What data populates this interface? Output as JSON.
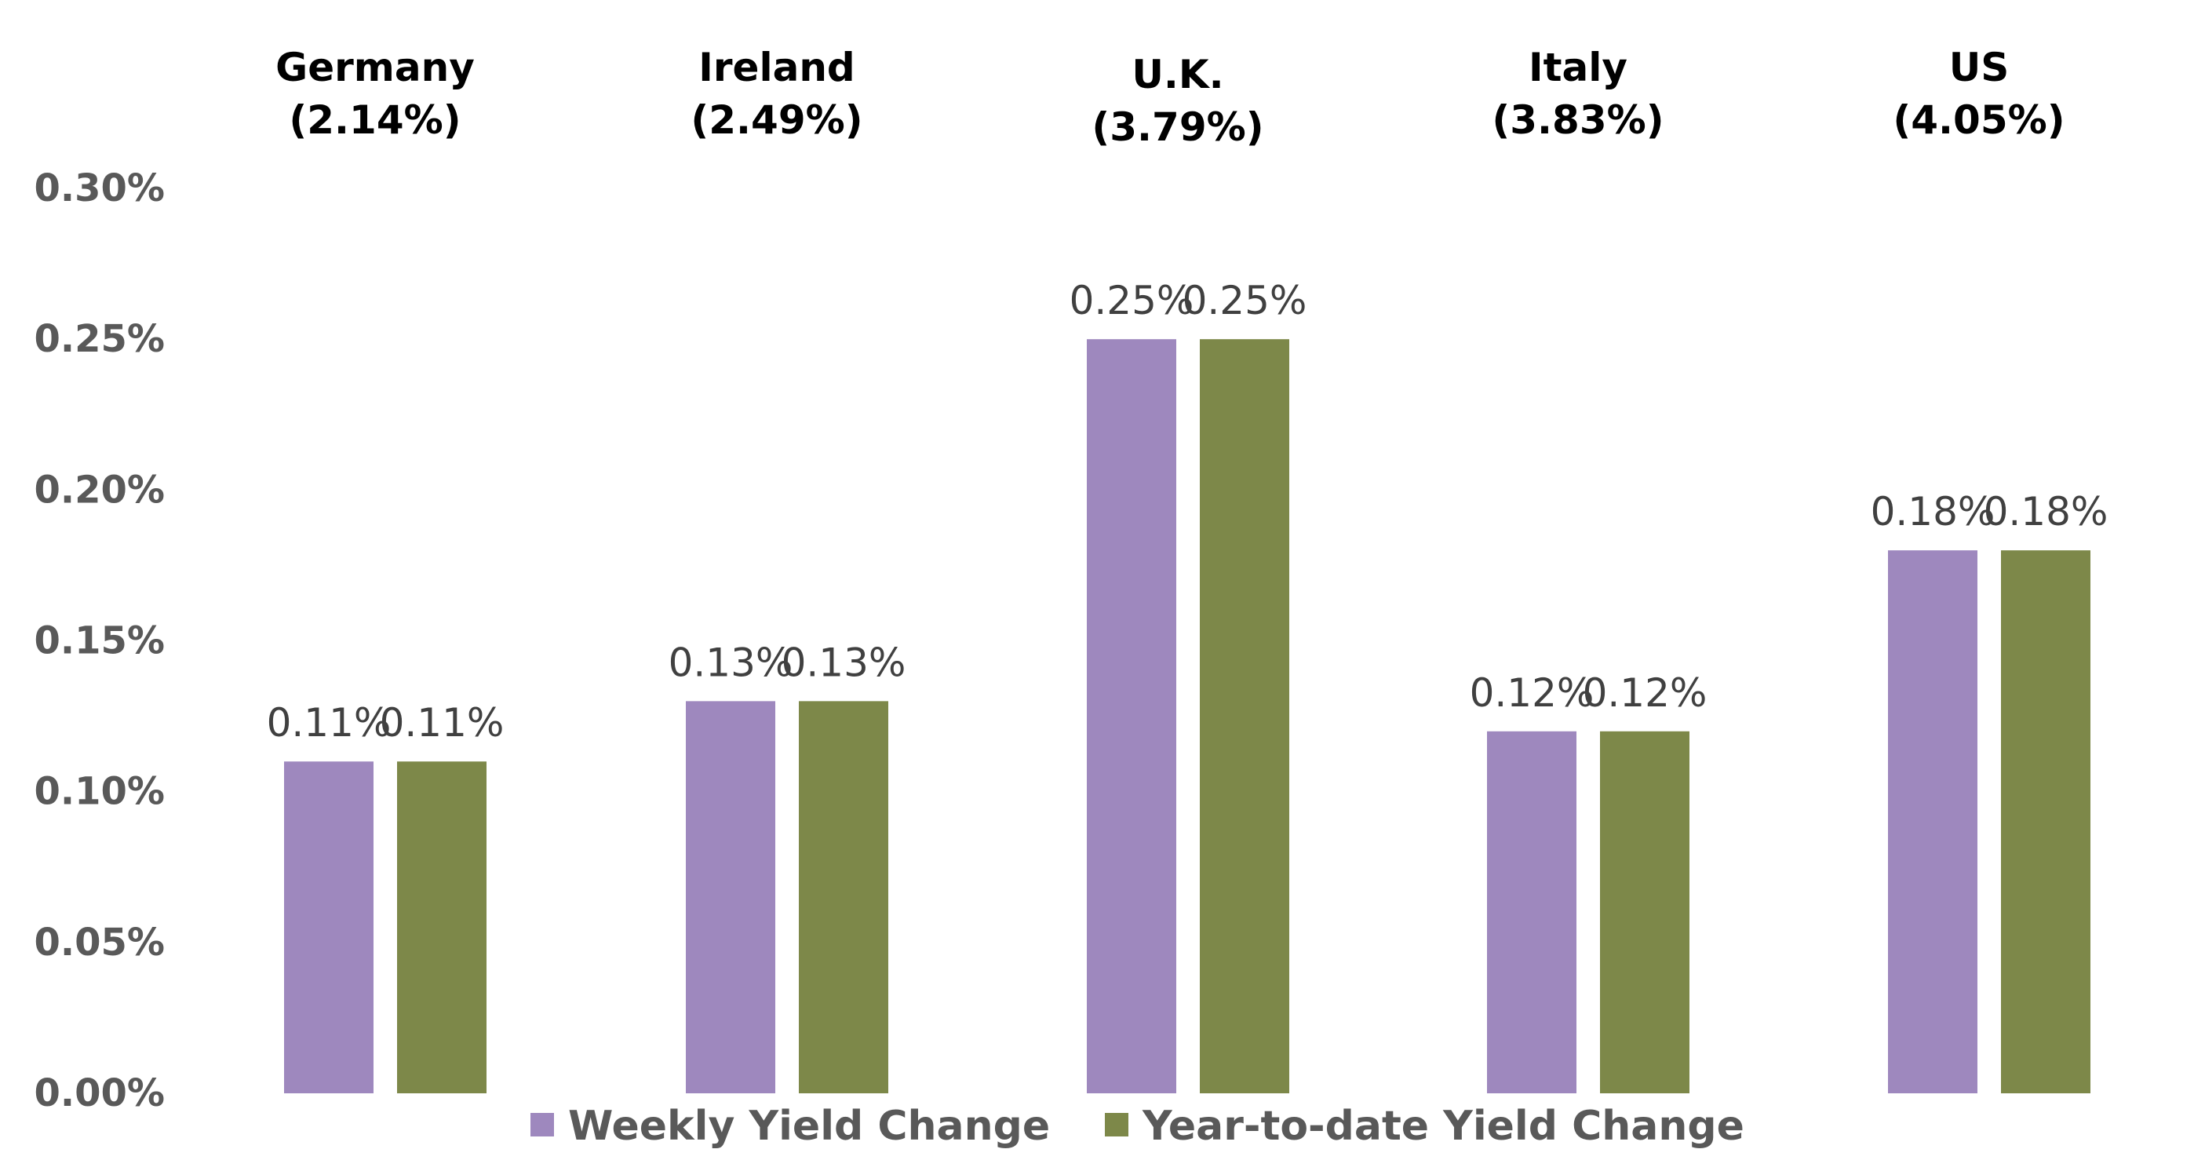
{
  "chart_data": {
    "type": "bar",
    "categories": [
      {
        "name": "Germany",
        "yield": "(2.14%)"
      },
      {
        "name": "Ireland",
        "yield": "(2.49%)"
      },
      {
        "name": "U.K.",
        "yield": "(3.79%)"
      },
      {
        "name": "Italy",
        "yield": "(3.83%)"
      },
      {
        "name": "US",
        "yield": "(4.05%)"
      }
    ],
    "series": [
      {
        "name": "Weekly Yield Change",
        "color": "#9e88be",
        "values": [
          0.11,
          0.13,
          0.25,
          0.12,
          0.18
        ],
        "labels": [
          "0.11%",
          "0.13%",
          "0.25%",
          "0.12%",
          "0.18%"
        ]
      },
      {
        "name": "Year-to-date Yield Change",
        "color": "#7d8849",
        "values": [
          0.11,
          0.13,
          0.25,
          0.12,
          0.18
        ],
        "labels": [
          "0.11%",
          "0.13%",
          "0.25%",
          "0.12%",
          "0.18%"
        ]
      }
    ],
    "yticks": [
      "0.00%",
      "0.05%",
      "0.10%",
      "0.15%",
      "0.20%",
      "0.25%",
      "0.30%"
    ],
    "ylim": [
      0,
      0.3
    ],
    "grid": false,
    "legend": "bottom",
    "title": "",
    "xlabel": "",
    "ylabel": ""
  }
}
